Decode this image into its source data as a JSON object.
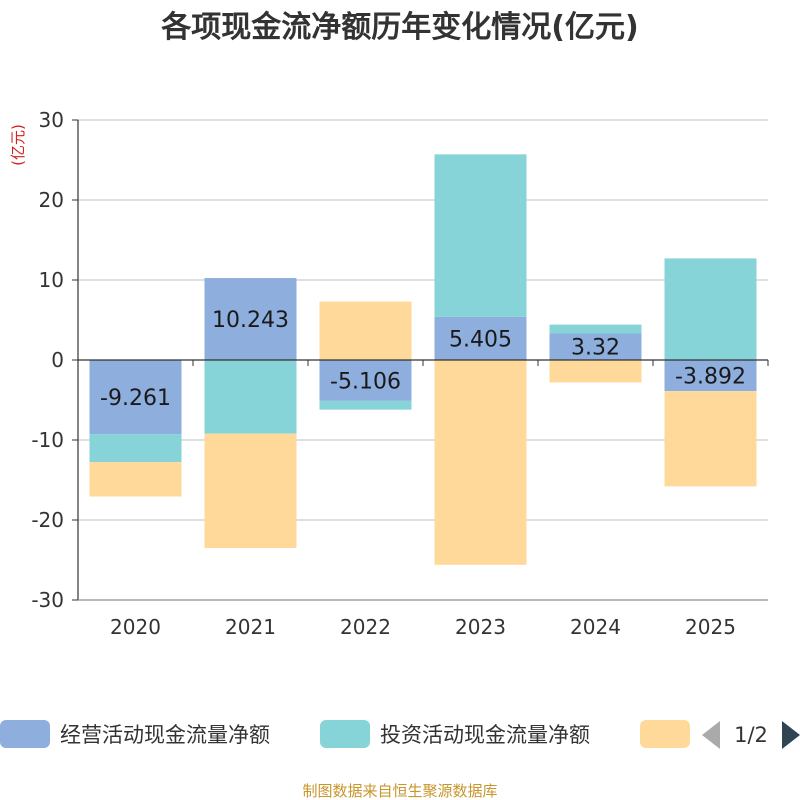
{
  "title": "各项现金流净额历年变化情况(亿元)",
  "source": "制图数据来自恒生聚源数据库",
  "chart_data": {
    "type": "bar",
    "stacked": true,
    "title": "各项现金流净额历年变化情况(亿元)",
    "ylabel": "(亿元)",
    "xlabel": "",
    "ylim": [
      -30,
      30
    ],
    "yticks": [
      30,
      20,
      10,
      0,
      -10,
      -20,
      -30
    ],
    "categories": [
      "2020",
      "2021",
      "2022",
      "2023",
      "2024",
      "2025"
    ],
    "series": [
      {
        "name": "经营活动现金流量净额",
        "color": "#8eaede",
        "values": [
          -9.261,
          10.243,
          -5.106,
          5.405,
          3.32,
          -3.892
        ]
      },
      {
        "name": "投资活动现金流量净额",
        "color": "#86d4d8",
        "values": [
          -3.5,
          -9.2,
          -1.1,
          20.3,
          1.1,
          12.7
        ]
      },
      {
        "name": "",
        "color": "#ffd999",
        "values": [
          -4.3,
          -14.3,
          7.3,
          -25.6,
          -2.8,
          -11.9
        ]
      }
    ],
    "data_labels": [
      "-9.261",
      "10.243",
      "-5.106",
      "5.405",
      "3.32",
      "-3.892"
    ],
    "legend_position": "bottom"
  },
  "legend": {
    "items": [
      "经营活动现金流量净额",
      "投资活动现金流量净额",
      ""
    ],
    "page": "1/2"
  }
}
